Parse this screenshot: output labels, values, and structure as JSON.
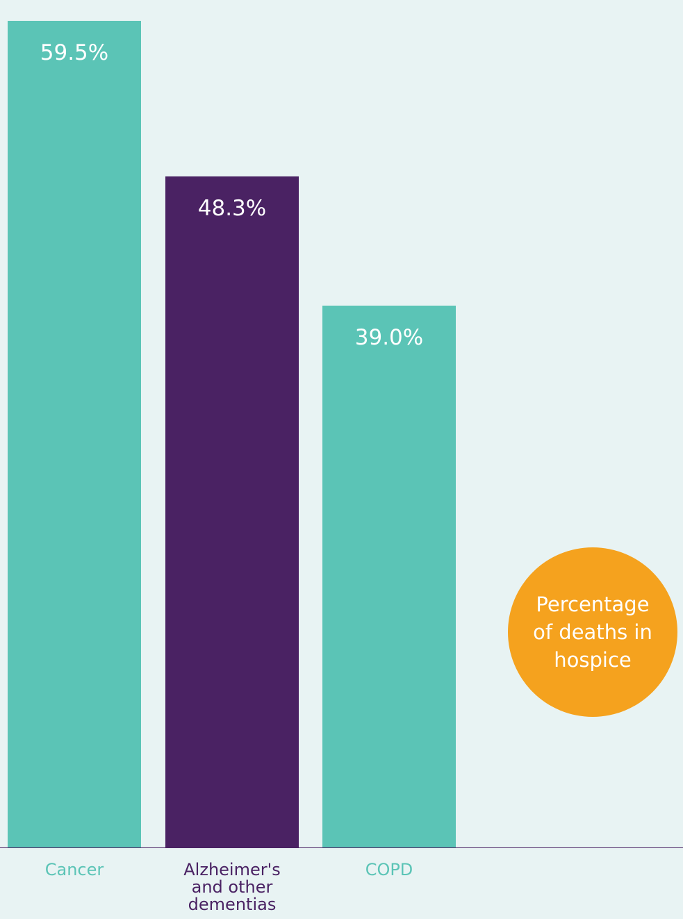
{
  "chart_data": {
    "type": "bar",
    "categories": [
      "Cancer",
      "Alzheimer's\nand other\ndementias",
      "COPD"
    ],
    "values": [
      59.5,
      48.3,
      39.0
    ],
    "value_labels": [
      "59.5%",
      "48.3%",
      "39.0%"
    ],
    "bar_colors": [
      "#5bc4b6",
      "#4a2263",
      "#5bc4b6"
    ],
    "label_colors": [
      "#5bc4b6",
      "#4a2263",
      "#5bc4b6"
    ],
    "value_label_color": "#ffffff",
    "baseline_color": "#4a2263",
    "ylim": [
      0,
      60.5
    ],
    "grid": false,
    "title": "",
    "xlabel": "",
    "ylabel": ""
  },
  "badge": {
    "text": "Percentage\nof deaths in\nhospice",
    "color": "#f5a21e"
  }
}
